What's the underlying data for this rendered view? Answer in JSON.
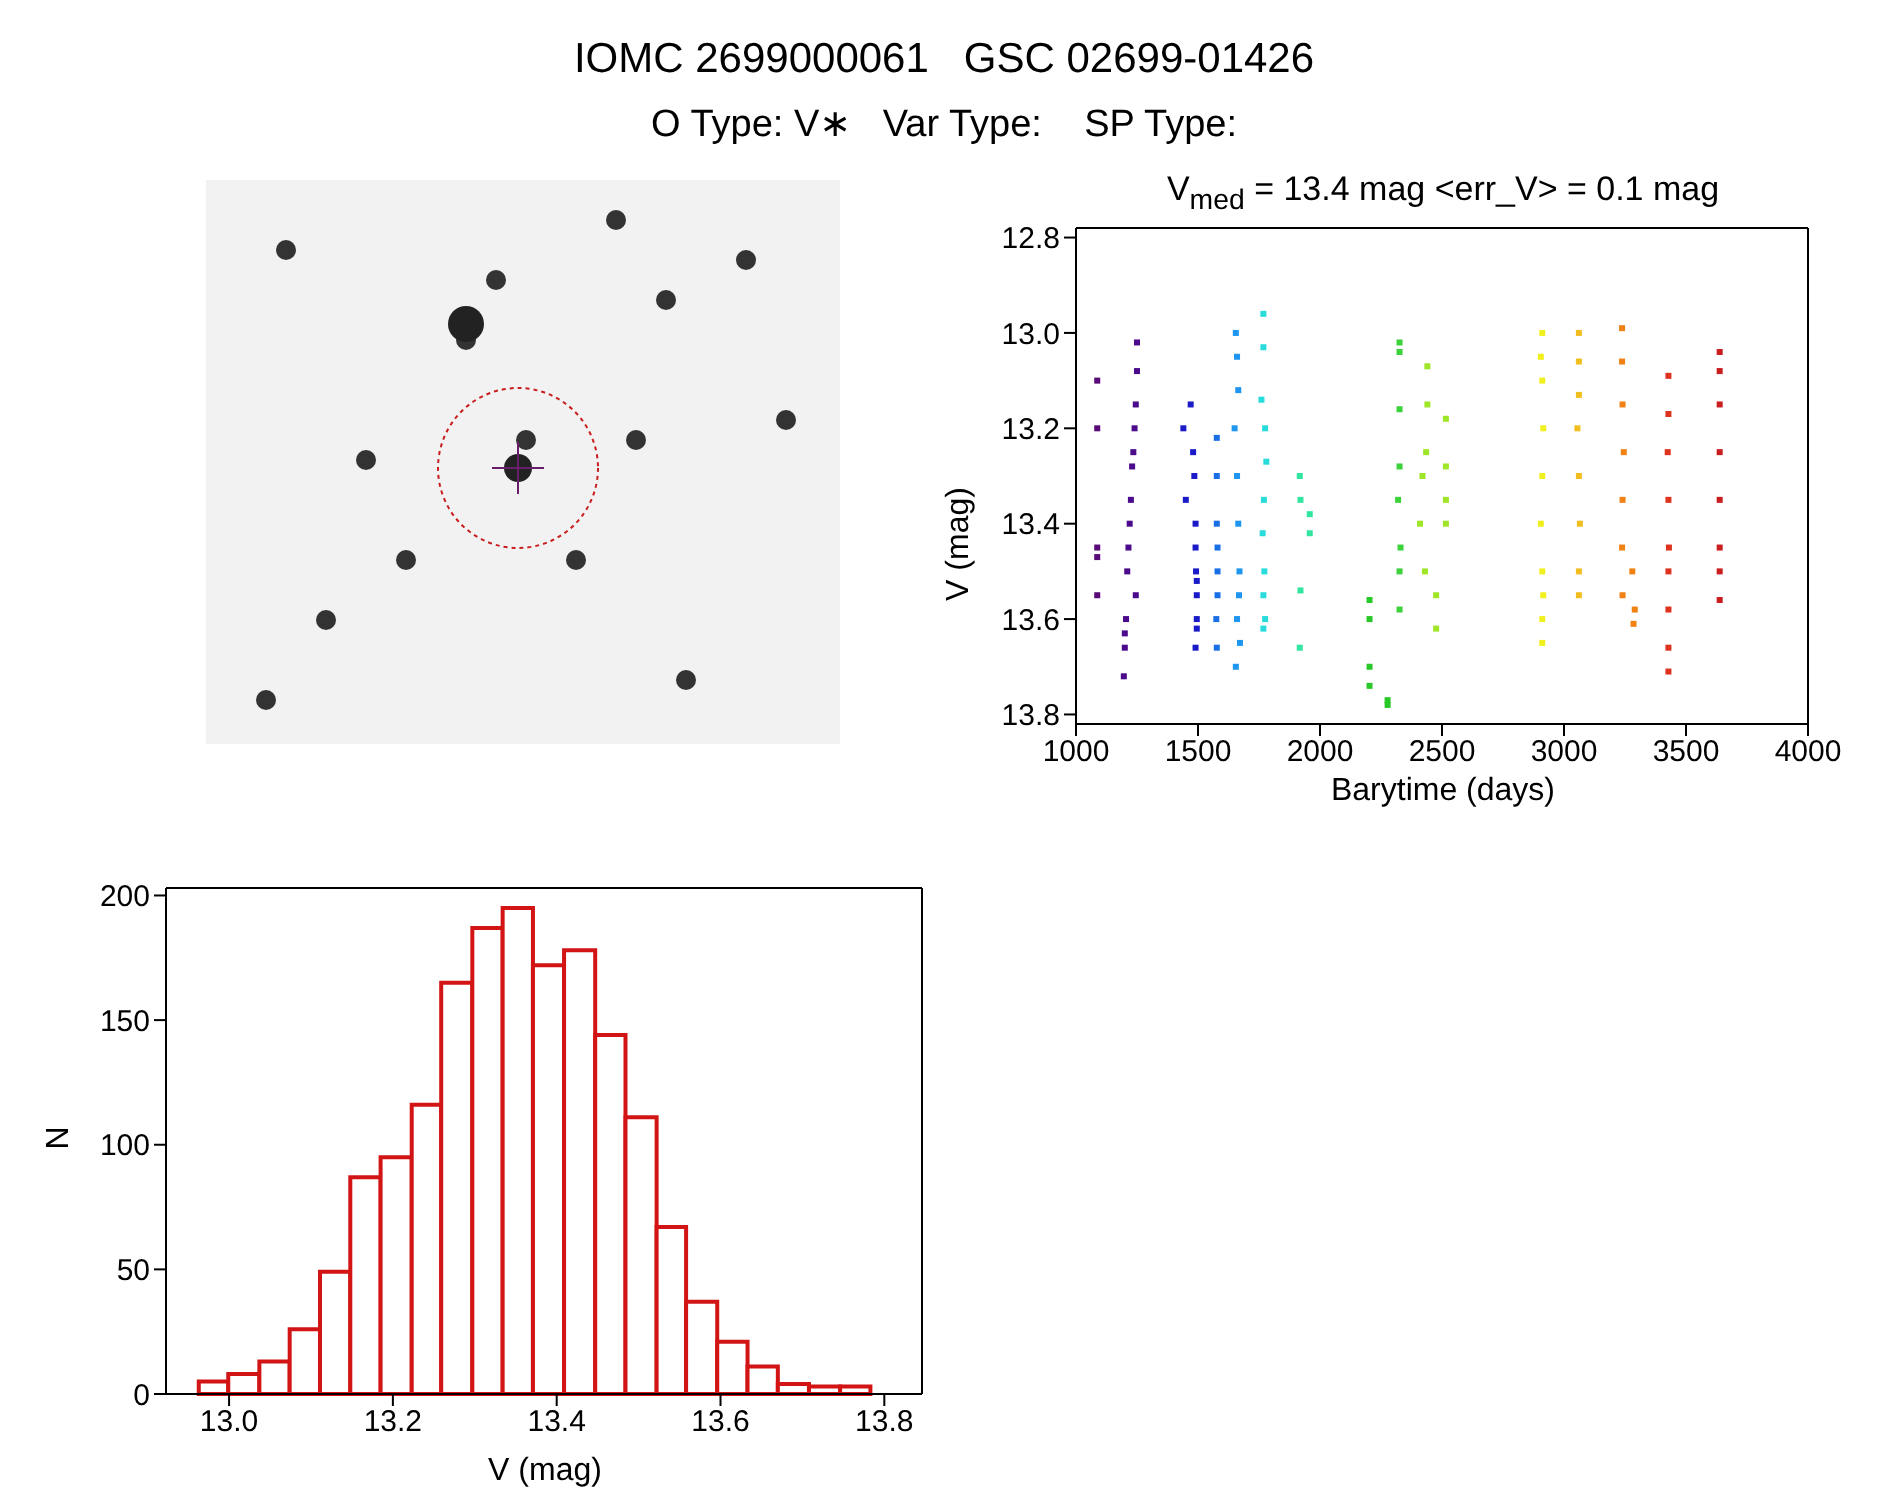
{
  "chart_data": [
    {
      "type": "scatter",
      "title": "IOMC 2699000061   GSC 02699-01426",
      "subtitle": "O Type: V∗   Var Type:    SP Type:",
      "annotations": [
        "V$_{med}$ = 13.4 mag <err_V> = 0.1 mag"
      ],
      "xlabel": "Barytime (days)",
      "ylabel": "V (mag)",
      "marker": "square",
      "xlim": [
        1000,
        4000
      ],
      "xticks": [
        1000,
        1500,
        2000,
        2500,
        3000,
        3500,
        4000
      ],
      "ylim": [
        13.82,
        12.78
      ],
      "yticks": [
        12.8,
        {
          "value": 13,
          "label": "13.0"
        },
        13.2,
        13.4,
        13.6,
        13.8
      ],
      "series": [
        {
          "color": "#5a0a78",
          "x": [
            1087,
            1087,
            1087,
            1087,
            1087
          ],
          "values": [
            13.1,
            13.2,
            13.45,
            13.47,
            13.55
          ]
        },
        {
          "color": "#4b0a8c",
          "x": [
            1196,
            1200,
            1205,
            1210,
            1215,
            1220,
            1225,
            1230,
            1235,
            1240,
            1245,
            1250,
            1250,
            1245,
            1200
          ],
          "values": [
            13.72,
            13.63,
            13.6,
            13.5,
            13.45,
            13.4,
            13.35,
            13.28,
            13.25,
            13.2,
            13.15,
            13.08,
            13.02,
            13.55,
            13.66
          ]
        },
        {
          "color": "#1a1ac8",
          "x": [
            1440,
            1450,
            1470,
            1480,
            1485,
            1490,
            1490,
            1492,
            1495,
            1495,
            1495,
            1495,
            1490
          ],
          "values": [
            13.2,
            13.35,
            13.15,
            13.25,
            13.3,
            13.4,
            13.45,
            13.5,
            13.52,
            13.55,
            13.6,
            13.62,
            13.66
          ]
        },
        {
          "color": "#1a6ee6",
          "x": [
            1577,
            1577,
            1577,
            1580,
            1580,
            1580,
            1575,
            1577
          ],
          "values": [
            13.22,
            13.3,
            13.4,
            13.45,
            13.5,
            13.55,
            13.6,
            13.66
          ]
        },
        {
          "color": "#1e96f0",
          "x": [
            1655,
            1660,
            1665,
            1650,
            1660,
            1665,
            1670,
            1668,
            1660,
            1672,
            1655
          ],
          "values": [
            13.0,
            13.05,
            13.12,
            13.2,
            13.3,
            13.4,
            13.5,
            13.55,
            13.6,
            13.65,
            13.7
          ]
        },
        {
          "color": "#28dcdc",
          "x": [
            1768,
            1768,
            1760,
            1775,
            1780,
            1770,
            1765,
            1772,
            1768,
            1775,
            1768
          ],
          "values": [
            12.96,
            13.03,
            13.14,
            13.2,
            13.27,
            13.35,
            13.42,
            13.5,
            13.55,
            13.6,
            13.62
          ]
        },
        {
          "color": "#32e6a0",
          "x": [
            1917,
            1920,
            1958,
            1958,
            1920,
            1917
          ],
          "values": [
            13.3,
            13.35,
            13.38,
            13.42,
            13.54,
            13.66
          ]
        },
        {
          "color": "#28c828",
          "x": [
            2203,
            2203,
            2203,
            2203,
            2277,
            2277
          ],
          "values": [
            13.56,
            13.6,
            13.7,
            13.74,
            13.77,
            13.78
          ]
        },
        {
          "color": "#3cd23c",
          "x": [
            2326,
            2326,
            2326,
            2326,
            2320,
            2330,
            2326,
            2326
          ],
          "values": [
            13.02,
            13.04,
            13.16,
            13.28,
            13.35,
            13.45,
            13.5,
            13.58
          ]
        },
        {
          "color": "#a0e628",
          "x": [
            2440,
            2440,
            2435,
            2420,
            2410,
            2430,
            2476,
            2476,
            2516,
            2516,
            2516,
            2516
          ],
          "values": [
            13.07,
            13.15,
            13.25,
            13.3,
            13.4,
            13.5,
            13.55,
            13.62,
            13.18,
            13.28,
            13.35,
            13.4
          ]
        },
        {
          "color": "#f0f01e",
          "x": [
            2911,
            2905,
            2911,
            2915,
            2911,
            2905,
            2911,
            2915,
            2911,
            2911
          ],
          "values": [
            13.0,
            13.05,
            13.1,
            13.2,
            13.3,
            13.4,
            13.5,
            13.55,
            13.6,
            13.65
          ]
        },
        {
          "color": "#f0be1e",
          "x": [
            3061,
            3061,
            3061,
            3055,
            3061,
            3065,
            3061,
            3061
          ],
          "values": [
            13.0,
            13.06,
            13.13,
            13.2,
            13.3,
            13.4,
            13.5,
            13.55
          ]
        },
        {
          "color": "#f08214",
          "x": [
            3238,
            3238,
            3240,
            3245,
            3240,
            3238,
            3280,
            3240,
            3290,
            3285
          ],
          "values": [
            12.99,
            13.06,
            13.15,
            13.25,
            13.35,
            13.45,
            13.5,
            13.55,
            13.58,
            13.61
          ]
        },
        {
          "color": "#dc321e",
          "x": [
            3428,
            3428,
            3425,
            3428,
            3430,
            3428,
            3428,
            3428,
            3428
          ],
          "values": [
            13.09,
            13.17,
            13.25,
            13.35,
            13.45,
            13.5,
            13.58,
            13.66,
            13.71
          ]
        },
        {
          "color": "#c81e1e",
          "x": [
            3638,
            3638,
            3638,
            3638,
            3638,
            3638,
            3638,
            3638
          ],
          "values": [
            13.04,
            13.08,
            13.15,
            13.25,
            13.35,
            13.45,
            13.5,
            13.56
          ]
        }
      ]
    },
    {
      "type": "histogram",
      "xlabel": "V (mag)",
      "ylabel": "N",
      "color": "#d21414",
      "bins": [
        12.963,
        12.999,
        13.037,
        13.074,
        13.111,
        13.148,
        13.185,
        13.223,
        13.259,
        13.297,
        13.334,
        13.371,
        13.409,
        13.447,
        13.484,
        13.522,
        13.558,
        13.596,
        13.633,
        13.67,
        13.708,
        13.746,
        13.783
      ],
      "values": [
        5,
        8,
        13,
        26,
        49,
        87,
        95,
        116,
        165,
        187,
        195,
        172,
        178,
        144,
        111,
        67,
        37,
        21,
        11,
        4,
        3,
        3
      ],
      "xlim": [
        12.923,
        13.846
      ],
      "xticks": [
        {
          "value": 13,
          "label": "13.0"
        },
        13.2,
        13.4,
        13.6,
        13.8
      ],
      "ylim": [
        0,
        203
      ],
      "yticks": [
        0,
        50,
        100,
        150,
        200
      ]
    }
  ]
}
